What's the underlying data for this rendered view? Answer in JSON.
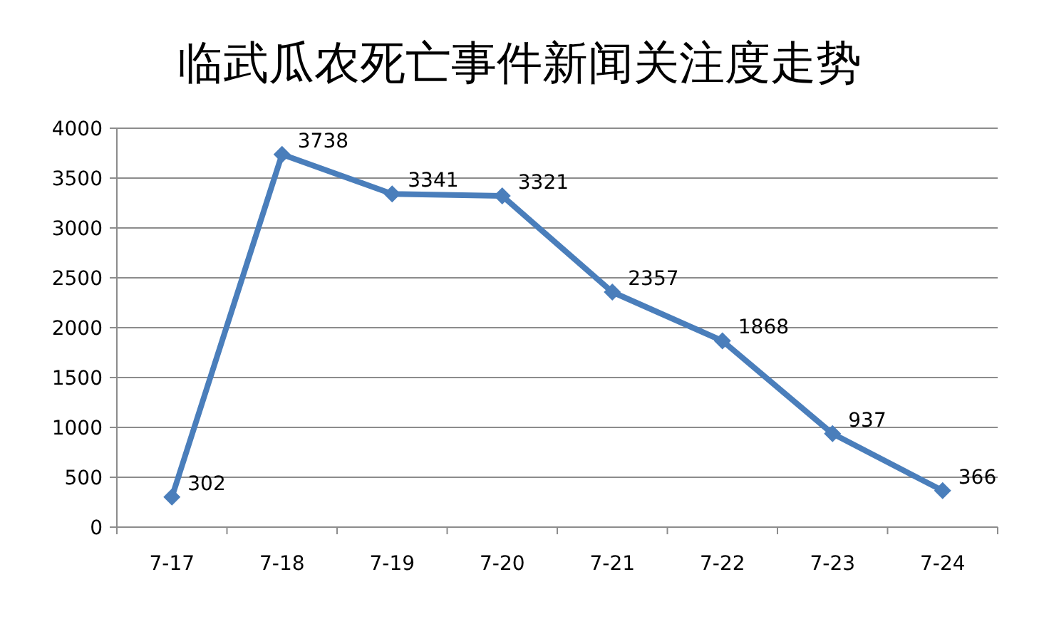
{
  "chart_data": {
    "type": "line",
    "title": "临武瓜农死亡事件新闻关注度走势",
    "categories": [
      "7-17",
      "7-18",
      "7-19",
      "7-20",
      "7-21",
      "7-22",
      "7-23",
      "7-24"
    ],
    "series": [
      {
        "color": "#4a7ebb",
        "values": [
          302,
          3738,
          3341,
          3321,
          2357,
          1868,
          937,
          366
        ]
      }
    ],
    "ylim": [
      0,
      4000
    ],
    "yticks": [
      0,
      500,
      1000,
      1500,
      2000,
      2500,
      3000,
      3500,
      4000
    ],
    "grid": "y",
    "marker": "diamond",
    "line_style": "solid",
    "data_labels": true
  }
}
